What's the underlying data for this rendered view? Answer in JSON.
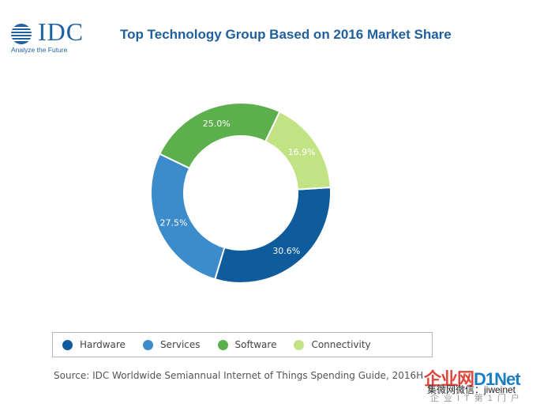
{
  "logo": {
    "name": "IDC",
    "tagline": "Analyze the Future"
  },
  "chart_data": {
    "type": "pie",
    "title": "Top Technology Group Based on 2016 Market Share",
    "donut": true,
    "series": [
      {
        "name": "Hardware",
        "value": 30.6,
        "label": "30.6%",
        "color": "#0f5c9c"
      },
      {
        "name": "Services",
        "value": 27.5,
        "label": "27.5%",
        "color": "#3c8ccb"
      },
      {
        "name": "Software",
        "value": 25.0,
        "label": "25.0%",
        "color": "#5caf4c"
      },
      {
        "name": "Connectivity",
        "value": 16.9,
        "label": "16.9%",
        "color": "#c1e383"
      }
    ],
    "legend_position": "bottom",
    "source": "Source: IDC Worldwide Semiannual Internet of Things Spending Guide, 2016H"
  },
  "watermark": {
    "brand_prefix": "企业网",
    "brand_suffix": "D1Net",
    "wechat": "集微网微信：jiweinet",
    "tagline": "企业IT第1门户"
  }
}
